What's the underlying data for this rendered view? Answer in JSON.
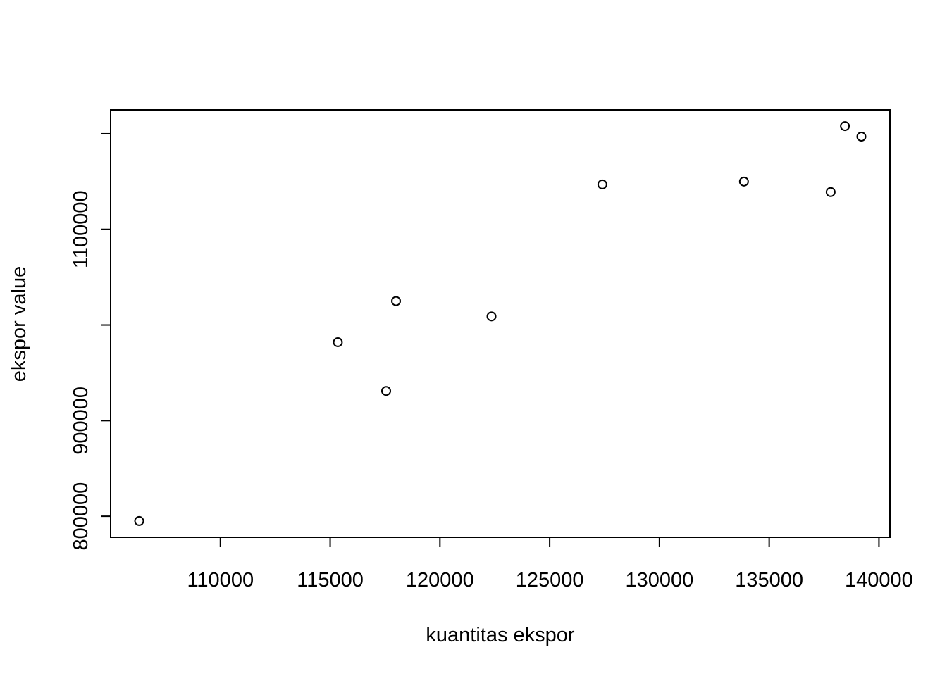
{
  "chart_data": {
    "type": "scatter",
    "title": "",
    "xlabel": "kuantitas ekspor",
    "ylabel": "ekspor value",
    "xlim": [
      105000,
      140500
    ],
    "ylim": [
      778000,
      1225000
    ],
    "x_ticks": [
      110000,
      115000,
      120000,
      125000,
      130000,
      135000,
      140000
    ],
    "x_tick_labels": [
      "110000",
      "115000",
      "120000",
      "125000",
      "130000",
      "135000",
      "140000"
    ],
    "y_ticks": [
      800000,
      900000,
      1000000,
      1100000,
      1200000
    ],
    "y_tick_labels": [
      "800000",
      "900000",
      "",
      "1100000",
      ""
    ],
    "grid": false,
    "legend": "none",
    "marker": "open-circle",
    "points": [
      {
        "x": 106300,
        "y": 795000
      },
      {
        "x": 115350,
        "y": 982000
      },
      {
        "x": 117550,
        "y": 931000
      },
      {
        "x": 118000,
        "y": 1025000
      },
      {
        "x": 122350,
        "y": 1009000
      },
      {
        "x": 127400,
        "y": 1147000
      },
      {
        "x": 133850,
        "y": 1150000
      },
      {
        "x": 137800,
        "y": 1139000
      },
      {
        "x": 138450,
        "y": 1208000
      },
      {
        "x": 139200,
        "y": 1197000
      }
    ]
  }
}
